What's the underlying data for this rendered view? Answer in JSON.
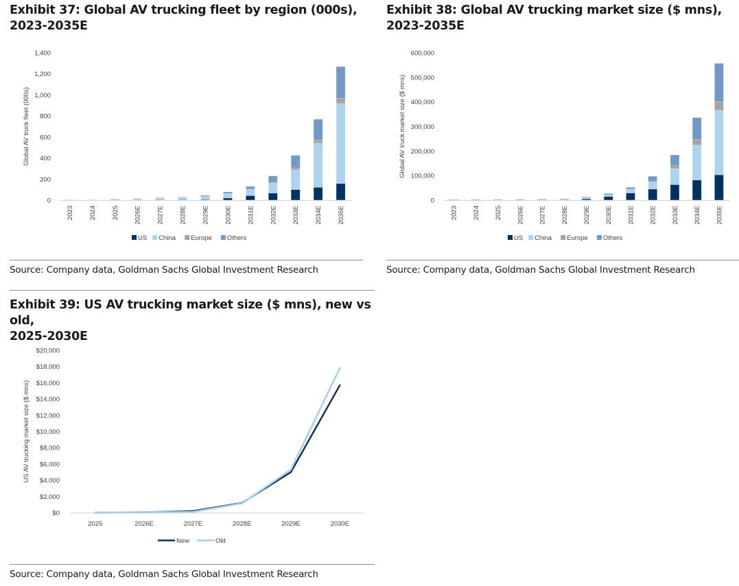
{
  "page": {
    "colors": {
      "US": "#003361",
      "China": "#acd3f0",
      "Europe": "#a3a3a3",
      "Others": "#7199c7",
      "New": "#0b2f55",
      "Old": "#a6d0ee",
      "axis": "#d9d9d9"
    }
  },
  "exhibits": [
    {
      "title_line1": "Exhibit 37: Global AV trucking fleet by region (000s),",
      "title_line2": "2023-2035E",
      "source": "Source: Company data, Goldman Sachs Global Investment Research"
    },
    {
      "title_line1": "Exhibit 38: Global AV trucking market size ($ mns),",
      "title_line2": "2023-2035E",
      "source": "Source: Company data, Goldman Sachs Global Investment Research"
    },
    {
      "title_line1": "Exhibit 39: US AV trucking market size ($ mns), new vs old,",
      "title_line2": "2025-2030E",
      "source": "Source: Company data, Goldman Sachs Global Investment Research"
    }
  ],
  "chart_data": [
    {
      "type": "bar",
      "stacked": true,
      "title": "Exhibit 37: Global AV trucking fleet by region (000s), 2023-2035E",
      "xlabel": "",
      "ylabel": "Global AV truck fleet (000s)",
      "ylim": [
        0,
        1400
      ],
      "yticks": [
        0,
        200,
        400,
        600,
        800,
        1000,
        1200,
        1400
      ],
      "ytick_labels": [
        "0",
        "200",
        "400",
        "600",
        "800",
        "1,000",
        "1,200",
        "1,400"
      ],
      "grid": false,
      "legend": "bottom",
      "categories": [
        "2023",
        "2024",
        "2025",
        "2026E",
        "2027E",
        "2028E",
        "2029E",
        "2030E",
        "2031E",
        "2032E",
        "2033E",
        "2034E",
        "2035E"
      ],
      "series": [
        {
          "name": "US",
          "values": [
            0,
            0,
            0,
            1,
            2,
            3,
            6,
            20,
            43,
            67,
            100,
            122,
            158
          ]
        },
        {
          "name": "China",
          "values": [
            2,
            3,
            5,
            9,
            14,
            20,
            28,
            40,
            57,
            94,
            188,
            418,
            760
          ]
        },
        {
          "name": "Europe",
          "values": [
            0,
            0,
            0,
            0,
            1,
            1,
            2,
            3,
            5,
            10,
            18,
            31,
            50
          ]
        },
        {
          "name": "Others",
          "values": [
            0,
            0,
            1,
            1,
            2,
            5,
            10,
            15,
            25,
            59,
            119,
            197,
            300
          ]
        }
      ]
    },
    {
      "type": "bar",
      "stacked": true,
      "title": "Exhibit 38: Global AV trucking market size ($ mns), 2023-2035E",
      "xlabel": "",
      "ylabel": "Global AV truck market size ($ mns)",
      "ylim": [
        0,
        600000
      ],
      "yticks": [
        0,
        100000,
        200000,
        300000,
        400000,
        500000,
        600000
      ],
      "ytick_labels": [
        "0",
        "100,000",
        "200,000",
        "300,000",
        "400,000",
        "500,000",
        "600,000"
      ],
      "grid": false,
      "legend": "bottom",
      "categories": [
        "2023",
        "2024",
        "2025",
        "2026E",
        "2027E",
        "2028E",
        "2029E",
        "2030E",
        "2031E",
        "2032E",
        "2033E",
        "2034E",
        "2035E"
      ],
      "series": [
        {
          "name": "US",
          "values": [
            0,
            0,
            0,
            0,
            200,
            600,
            5000,
            15000,
            29000,
            45000,
            63000,
            82000,
            103000
          ]
        },
        {
          "name": "China",
          "values": [
            300,
            500,
            800,
            1200,
            1800,
            3000,
            4500,
            6000,
            14000,
            28000,
            65000,
            142000,
            263000
          ]
        },
        {
          "name": "Europe",
          "values": [
            0,
            0,
            0,
            100,
            200,
            400,
            700,
            1000,
            2000,
            5000,
            12000,
            24000,
            35000
          ]
        },
        {
          "name": "Others",
          "values": [
            200,
            300,
            400,
            600,
            800,
            1500,
            2800,
            5000,
            7000,
            19000,
            44000,
            88000,
            156000
          ]
        }
      ]
    },
    {
      "type": "line",
      "title": "Exhibit 39: US AV trucking market size ($ mns), new vs old, 2025-2030E",
      "xlabel": "",
      "ylabel": "US AV trucking market size ($ mns)",
      "ylim": [
        0,
        20000
      ],
      "yticks": [
        0,
        2000,
        4000,
        6000,
        8000,
        10000,
        12000,
        14000,
        16000,
        18000,
        20000
      ],
      "ytick_labels": [
        "$0",
        "$2,000",
        "$4,000",
        "$6,000",
        "$8,000",
        "$10,000",
        "$12,000",
        "$14,000",
        "$16,000",
        "$18,000",
        "$20,000"
      ],
      "grid": false,
      "legend": "bottom",
      "categories": [
        "2025",
        "2026E",
        "2027E",
        "2028E",
        "2029E",
        "2030E"
      ],
      "series": [
        {
          "name": "New",
          "values": [
            0,
            50,
            200,
            1200,
            5000,
            15700
          ]
        },
        {
          "name": "Old",
          "values": [
            0,
            30,
            100,
            1150,
            5300,
            17800
          ]
        }
      ]
    }
  ]
}
